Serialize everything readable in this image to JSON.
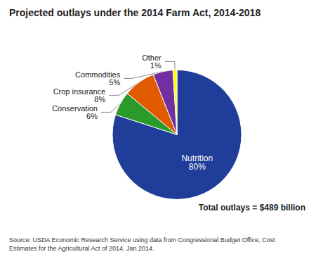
{
  "chart_data": {
    "type": "pie",
    "title": "Projected outlays under the 2014 Farm Act, 2014-2018",
    "categories": [
      "Nutrition",
      "Conservation",
      "Crop insurance",
      "Commodities",
      "Other"
    ],
    "values": [
      80,
      6,
      8,
      5,
      1
    ],
    "value_labels": [
      "80%",
      "6%",
      "8%",
      "5%",
      "1%"
    ],
    "colors": [
      "#1f3d99",
      "#2a9a2a",
      "#e05a00",
      "#7030a0",
      "#ffff00"
    ],
    "data_labels": true,
    "annotations": [
      "Total outlays = $489 billion",
      "Source: USDA Economic Research Service using data from Congressional Budget Office, Cost\nEstimates for the Agricultural Act of 2014, Jan 2014."
    ]
  }
}
